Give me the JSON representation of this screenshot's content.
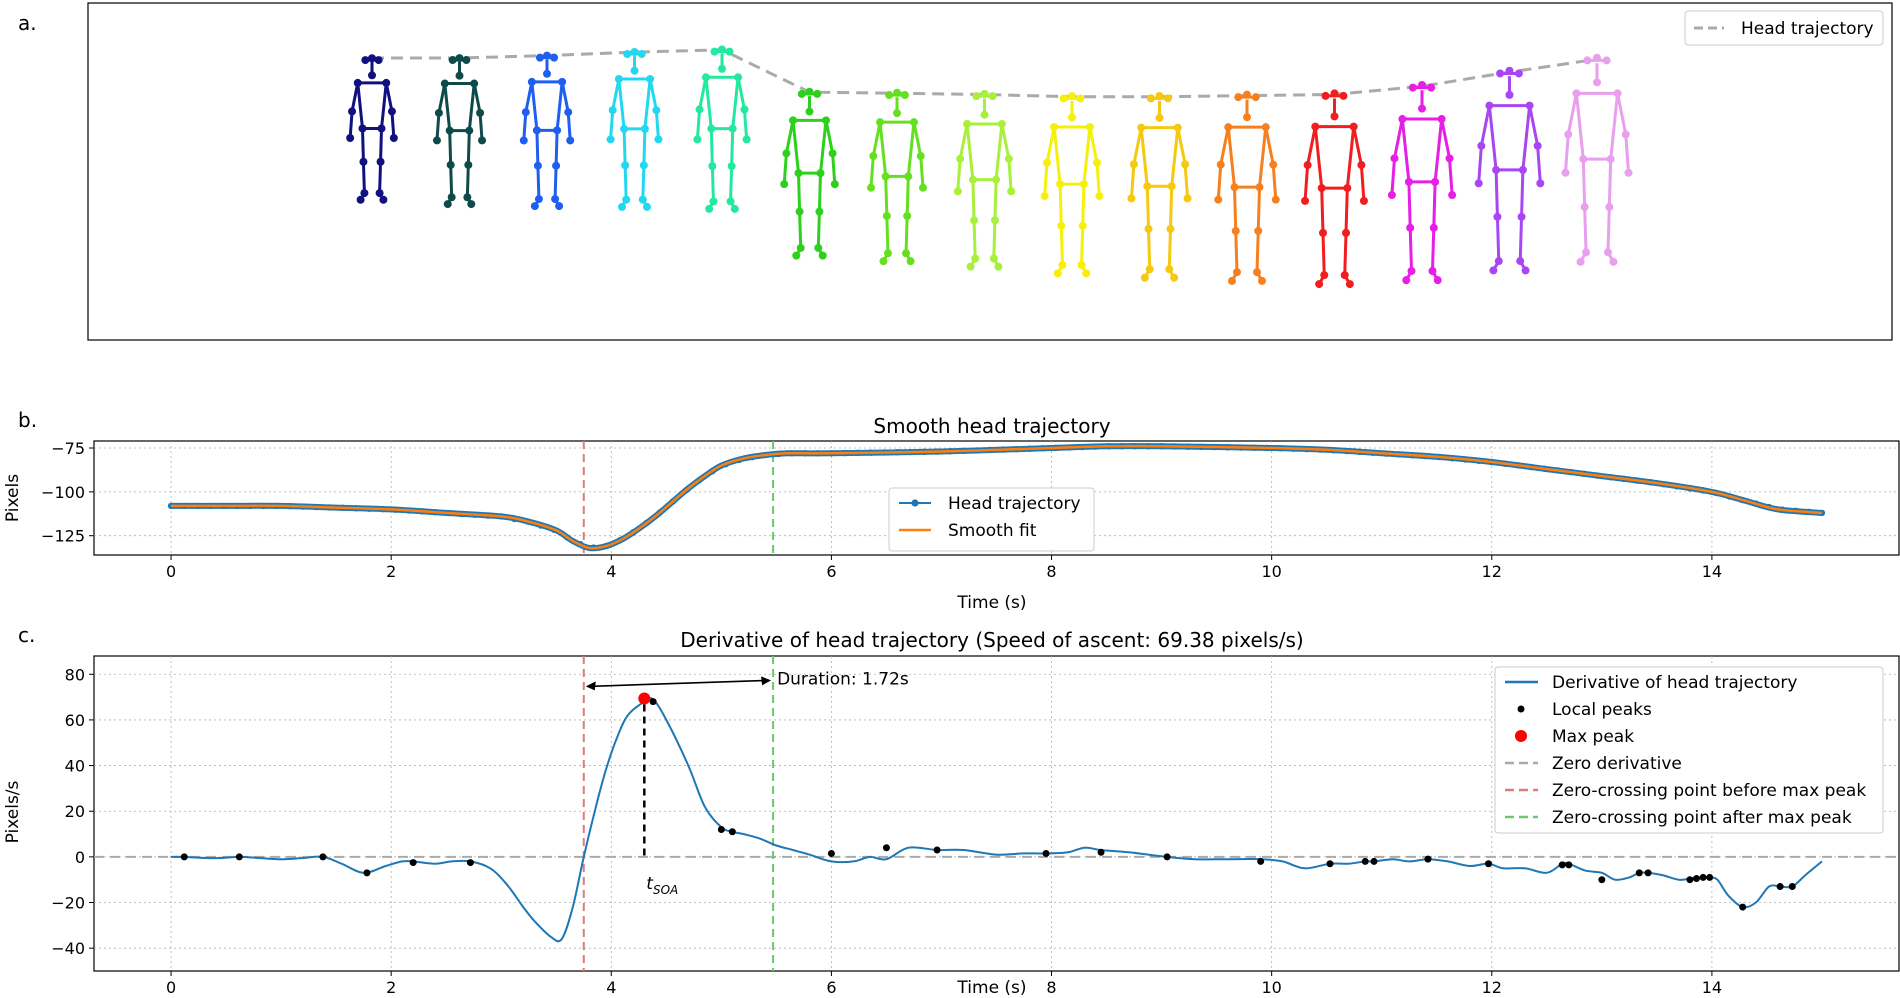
{
  "panel_labels": [
    "a.",
    "b.",
    "c."
  ],
  "colors": {
    "blue": "#1f77b4",
    "orange": "#ff7f0e",
    "grid": "#b0b0b0",
    "red_line": "#e07b7b",
    "green_line": "#6cc86c",
    "zero_line": "#aaaaaa",
    "peak": "#000000",
    "max_peak": "#ff0000"
  },
  "chart_data": [
    {
      "type": "skeleton-sequence",
      "legend": [
        "Head trajectory"
      ],
      "figure_colors": [
        "#101080",
        "#0e4a4a",
        "#1e5ef0",
        "#22d8f0",
        "#22e8a0",
        "#2ed01e",
        "#64e01e",
        "#a8f03a",
        "#f6f008",
        "#f6c810",
        "#f6801e",
        "#f01e1e",
        "#e61ee6",
        "#a846f2",
        "#e8a0ee"
      ],
      "head_y_values": [
        -108,
        -108,
        -110,
        -113,
        -115,
        -79,
        -78,
        -77,
        -75,
        -75,
        -76,
        -77,
        -84,
        -96,
        -107
      ]
    },
    {
      "type": "line",
      "title": "Smooth head trajectory",
      "xlabel": "Time (s)",
      "ylabel": "Pixels",
      "xlim": [
        -0.7,
        15.7
      ],
      "ylim": [
        -136,
        -71
      ],
      "xticks": [
        0,
        2,
        4,
        6,
        8,
        10,
        12,
        14
      ],
      "yticks": [
        -75,
        -100,
        -125
      ],
      "vlines": [
        3.75,
        5.47
      ],
      "legend": [
        "Head trajectory",
        "Smooth fit"
      ],
      "series": [
        {
          "name": "Head trajectory",
          "x": [
            0,
            0.5,
            1.0,
            1.5,
            2.0,
            2.5,
            3.0,
            3.25,
            3.5,
            3.65,
            3.8,
            3.95,
            4.1,
            4.25,
            4.4,
            4.55,
            4.7,
            4.85,
            5.0,
            5.2,
            5.4,
            5.6,
            6.0,
            7.0,
            8.0,
            8.5,
            9.0,
            10.0,
            10.5,
            11.0,
            11.5,
            12.0,
            12.5,
            13.0,
            13.5,
            14.0,
            14.3,
            14.6,
            15.0
          ],
          "y": [
            -108,
            -108,
            -108,
            -109,
            -110,
            -112,
            -114,
            -117,
            -122,
            -128,
            -132,
            -131,
            -127,
            -121,
            -114,
            -106,
            -98,
            -91,
            -85,
            -81,
            -79,
            -78,
            -78,
            -77,
            -75,
            -74,
            -74,
            -75,
            -76,
            -78,
            -80,
            -83,
            -87,
            -91,
            -95,
            -100,
            -105,
            -110,
            -112
          ]
        },
        {
          "name": "Smooth fit",
          "x": [
            0,
            0.5,
            1.0,
            1.5,
            2.0,
            2.5,
            3.0,
            3.25,
            3.5,
            3.65,
            3.8,
            3.95,
            4.1,
            4.25,
            4.4,
            4.55,
            4.7,
            4.85,
            5.0,
            5.2,
            5.4,
            5.6,
            6.0,
            7.0,
            8.0,
            8.5,
            9.0,
            10.0,
            10.5,
            11.0,
            11.5,
            12.0,
            12.5,
            13.0,
            13.5,
            14.0,
            14.3,
            14.6,
            15.0
          ],
          "y": [
            -108,
            -108,
            -108,
            -109,
            -110,
            -112,
            -114,
            -117,
            -122,
            -128,
            -132,
            -131,
            -127,
            -121,
            -114,
            -106,
            -98,
            -91,
            -85,
            -81,
            -79,
            -78,
            -78,
            -77,
            -75,
            -74,
            -74,
            -75,
            -76,
            -78,
            -80,
            -83,
            -87,
            -91,
            -95,
            -100,
            -105,
            -110,
            -112
          ]
        }
      ]
    },
    {
      "type": "line",
      "title": "Derivative of head trajectory (Speed of ascent: 69.38 pixels/s)",
      "xlabel": "Time (s)",
      "ylabel": "Pixels/s",
      "xlim": [
        -0.7,
        15.7
      ],
      "ylim": [
        -50,
        88
      ],
      "xticks": [
        0,
        2,
        4,
        6,
        8,
        10,
        12,
        14
      ],
      "yticks": [
        80,
        60,
        40,
        20,
        0,
        -20,
        -40
      ],
      "vlines": [
        3.75,
        5.47
      ],
      "annotation_duration": "Duration: 1.72s",
      "annotation_tsoa": "t",
      "annotation_tsoa_sub": "SOA",
      "legend": [
        "Derivative of head trajectory",
        "Local peaks",
        "Max peak",
        "Zero derivative",
        "Zero-crossing point before max peak",
        "Zero-crossing point after max peak"
      ],
      "series": [
        {
          "name": "Derivative of head trajectory",
          "x": [
            0,
            0.12,
            0.3,
            0.45,
            0.62,
            0.8,
            1.0,
            1.2,
            1.38,
            1.55,
            1.75,
            1.95,
            2.1,
            2.2,
            2.4,
            2.55,
            2.72,
            2.9,
            3.05,
            3.2,
            3.3,
            3.45,
            3.55,
            3.65,
            3.75,
            3.85,
            3.95,
            4.05,
            4.15,
            4.3,
            4.38,
            4.5,
            4.7,
            4.85,
            5.0,
            5.1,
            5.2,
            5.35,
            5.5,
            5.65,
            5.8,
            6.0,
            6.2,
            6.35,
            6.5,
            6.7,
            6.96,
            7.2,
            7.5,
            7.75,
            7.95,
            8.15,
            8.3,
            8.45,
            8.7,
            9.05,
            9.3,
            9.6,
            9.9,
            10.1,
            10.3,
            10.53,
            10.7,
            10.85,
            10.93,
            11.1,
            11.25,
            11.42,
            11.6,
            11.8,
            11.97,
            12.1,
            12.3,
            12.5,
            12.64,
            12.7,
            12.85,
            13.0,
            13.12,
            13.25,
            13.34,
            13.42,
            13.55,
            13.7,
            13.8,
            13.86,
            13.92,
            13.98,
            14.05,
            14.15,
            14.28,
            14.4,
            14.52,
            14.62,
            14.73,
            14.85,
            15.0
          ],
          "y": [
            0,
            0,
            -0.5,
            -0.5,
            0,
            -0.5,
            -1,
            -0.5,
            0,
            -3,
            -7,
            -4,
            -2,
            -2,
            -3,
            -2,
            -2,
            -5,
            -12,
            -22,
            -28,
            -35,
            -36,
            -22,
            0,
            20,
            38,
            52,
            62,
            68,
            69,
            60,
            40,
            22,
            13,
            11,
            10,
            8,
            5,
            3,
            1,
            -2,
            -2,
            0,
            -1,
            4,
            3,
            3,
            1,
            1.5,
            1.5,
            2,
            4,
            3,
            2,
            0,
            -1,
            -1,
            -1,
            -2,
            -5,
            -3,
            -3,
            -2,
            -2,
            -1,
            -2,
            -1,
            -2,
            -4,
            -3,
            -5,
            -5,
            -7,
            -3,
            -3,
            -6,
            -7,
            -10,
            -9,
            -7,
            -7,
            -8,
            -10,
            -9.5,
            -9,
            -9,
            -9,
            -10,
            -17,
            -22,
            -20,
            -13,
            -13,
            -13,
            -8,
            -2
          ]
        },
        {
          "name": "Local peaks",
          "x": [
            0.12,
            0.62,
            1.38,
            1.78,
            2.2,
            2.72,
            4.38,
            5.0,
            5.1,
            6.0,
            6.5,
            6.96,
            7.95,
            8.45,
            9.05,
            9.9,
            10.53,
            10.85,
            10.93,
            11.42,
            11.97,
            12.64,
            12.7,
            13.0,
            13.34,
            13.42,
            13.8,
            13.86,
            13.92,
            13.98,
            14.28,
            14.62,
            14.73
          ],
          "y": [
            0,
            0,
            0,
            -7,
            -2.5,
            -2.5,
            68,
            12,
            11,
            1.5,
            4,
            3,
            1.5,
            2,
            0,
            -2,
            -3,
            -2,
            -2,
            -1,
            -3,
            -3.5,
            -3.5,
            -10,
            -7,
            -7,
            -10,
            -9.5,
            -9,
            -9,
            -22,
            -13,
            -13
          ]
        },
        {
          "name": "Max peak",
          "x": [
            4.3
          ],
          "y": [
            69.38
          ]
        }
      ]
    }
  ]
}
